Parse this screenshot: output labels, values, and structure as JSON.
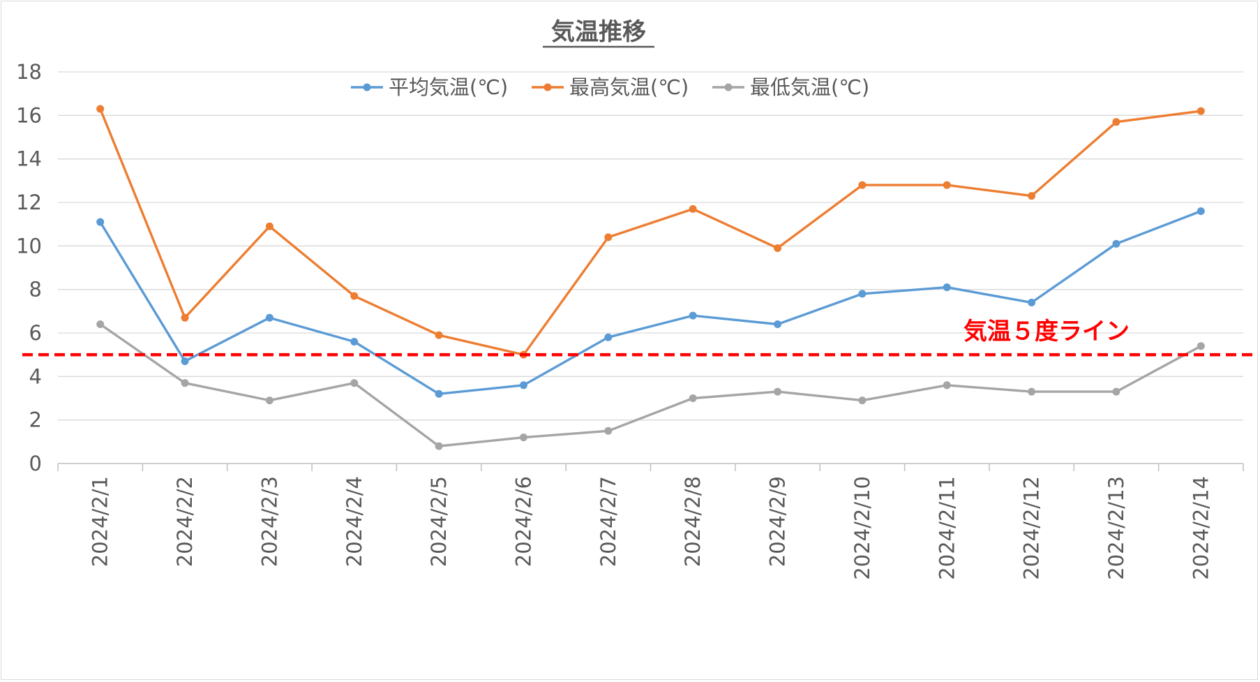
{
  "chart_data": {
    "type": "line",
    "title": "気温推移",
    "categories": [
      "2024/2/1",
      "2024/2/2",
      "2024/2/3",
      "2024/2/4",
      "2024/2/5",
      "2024/2/6",
      "2024/2/7",
      "2024/2/8",
      "2024/2/9",
      "2024/2/10",
      "2024/2/11",
      "2024/2/12",
      "2024/2/13",
      "2024/2/14"
    ],
    "series": [
      {
        "name": "平均気温(℃)",
        "color": "#5b9bd5",
        "values": [
          11.1,
          4.7,
          6.7,
          5.6,
          3.2,
          3.6,
          5.8,
          6.8,
          6.4,
          7.8,
          8.1,
          7.4,
          10.1,
          11.6
        ]
      },
      {
        "name": "最高気温(℃)",
        "color": "#ed7d31",
        "values": [
          16.3,
          6.7,
          10.9,
          7.7,
          5.9,
          5.0,
          10.4,
          11.7,
          9.9,
          12.8,
          12.8,
          12.3,
          15.7,
          16.2
        ]
      },
      {
        "name": "最低気温(℃)",
        "color": "#a5a5a5",
        "values": [
          6.4,
          3.7,
          2.9,
          3.7,
          0.8,
          1.2,
          1.5,
          3.0,
          3.3,
          2.9,
          3.6,
          3.3,
          3.3,
          5.4
        ]
      }
    ],
    "ylim": [
      0,
      18
    ],
    "yticks": [
      0,
      2,
      4,
      6,
      8,
      10,
      12,
      14,
      16,
      18
    ],
    "ytick_labels": [
      "0",
      "2",
      "4",
      "6",
      "8",
      "10",
      "12",
      "14",
      "16",
      "18"
    ],
    "grid": true,
    "legend_position": "top",
    "reference_line": {
      "value": 5,
      "label": "気温５度ライン",
      "color": "#ff0000",
      "style": "dashed"
    }
  }
}
